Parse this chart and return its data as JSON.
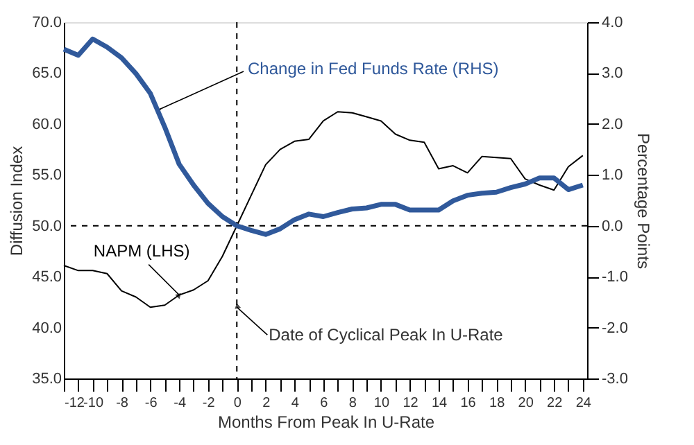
{
  "chart_data": {
    "type": "line",
    "x": [
      -12,
      -11,
      -10,
      -9,
      -8,
      -7,
      -6,
      -5,
      -4,
      -3,
      -2,
      -1,
      0,
      1,
      2,
      3,
      4,
      5,
      6,
      7,
      8,
      9,
      10,
      11,
      12,
      13,
      14,
      15,
      16,
      17,
      18,
      19,
      20,
      21,
      22,
      23,
      24
    ],
    "series": [
      {
        "name": "NAPM (LHS)",
        "color": "#000000",
        "line_style": "solid",
        "values": [
          46.1,
          45.6,
          45.6,
          45.3,
          43.6,
          43.0,
          42.0,
          42.2,
          43.2,
          43.7,
          44.6,
          47.0,
          50.0,
          53.0,
          56.0,
          57.5,
          58.3,
          58.5,
          60.3,
          61.2,
          61.1,
          60.7,
          60.3,
          59.0,
          58.4,
          58.2,
          55.6,
          55.9,
          55.2,
          56.8,
          56.7,
          56.6,
          54.6,
          54.0,
          53.5,
          55.8,
          56.9
        ]
      },
      {
        "name": "Change in Fed Funds Rate (RHS)",
        "color": "#30599b",
        "axis": "y2",
        "line_style": "solid",
        "values": [
          3.47,
          3.35,
          3.67,
          3.51,
          3.3,
          2.99,
          2.6,
          1.94,
          1.21,
          0.8,
          0.44,
          0.18,
          0.0,
          -0.09,
          -0.17,
          -0.06,
          0.12,
          0.23,
          0.18,
          0.26,
          0.33,
          0.35,
          0.42,
          0.42,
          0.31,
          0.31,
          0.31,
          0.49,
          0.6,
          0.64,
          0.66,
          0.75,
          0.82,
          0.94,
          0.94,
          0.71,
          0.8
        ]
      }
    ],
    "xlabel": "Months From Peak In U-Rate",
    "ylabel": "Diffusion Index",
    "y2label": "Percentage Points",
    "xlim": [
      -12,
      24.3
    ],
    "xticks": [
      -12,
      {
        "value": -11,
        "label": null
      },
      -10,
      {
        "value": -9,
        "label": null
      },
      -8,
      {
        "value": -7,
        "label": null
      },
      -6,
      {
        "value": -5,
        "label": null
      },
      -4,
      {
        "value": -3,
        "label": null
      },
      -2,
      {
        "value": -1,
        "label": null
      },
      0,
      {
        "value": 1,
        "label": null
      },
      2,
      {
        "value": 3,
        "label": null
      },
      4,
      {
        "value": 5,
        "label": null
      },
      6,
      {
        "value": 7,
        "label": null
      },
      8,
      {
        "value": 9,
        "label": null
      },
      10,
      {
        "value": 11,
        "label": null
      },
      12,
      {
        "value": 13,
        "label": null
      },
      14,
      {
        "value": 15,
        "label": null
      },
      16,
      {
        "value": 17,
        "label": null
      },
      18,
      {
        "value": 19,
        "label": null
      },
      20,
      {
        "value": 21,
        "label": null
      },
      22,
      {
        "value": 23,
        "label": null
      },
      24
    ],
    "ylim": [
      35,
      70
    ],
    "yticks": [
      {
        "value": 35,
        "label": "35.0"
      },
      {
        "value": 40,
        "label": "40.0"
      },
      {
        "value": 45,
        "label": "45.0"
      },
      {
        "value": 50,
        "label": "50.0"
      },
      {
        "value": 55,
        "label": "55.0"
      },
      {
        "value": 60,
        "label": "60.0"
      },
      {
        "value": 65,
        "label": "65.0"
      },
      {
        "value": 70,
        "label": "70.0"
      }
    ],
    "y2lim": [
      -3,
      4
    ],
    "y2ticks": [
      {
        "value": -3,
        "label": "-3.0"
      },
      {
        "value": -2,
        "label": "-2.0"
      },
      {
        "value": -1,
        "label": "-1.0"
      },
      {
        "value": 0,
        "label": "0.0"
      },
      {
        "value": 1,
        "label": "1.0"
      },
      {
        "value": 2,
        "label": "2.0"
      },
      {
        "value": 3,
        "label": "3.0"
      },
      {
        "value": 4,
        "label": "4.0"
      }
    ],
    "ref_lines": [
      {
        "axis": "y",
        "value": 50,
        "color": "#000000",
        "line_style": "dashed"
      },
      {
        "axis": "x",
        "value": 0,
        "color": "#000000",
        "line_style": "dashed"
      }
    ],
    "annotations": [
      {
        "text": "Date of Cyclical Peak In U-Rate",
        "x": 0,
        "y": 42.0
      }
    ],
    "grid": false,
    "marker": "none"
  }
}
